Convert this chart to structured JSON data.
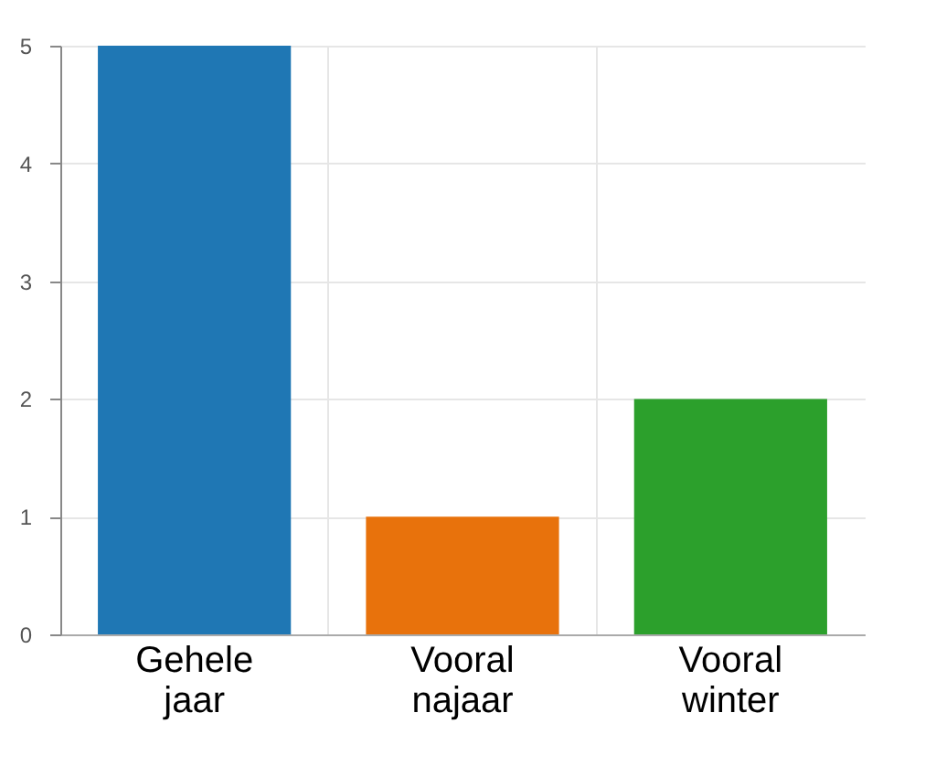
{
  "chart_data": {
    "type": "bar",
    "categories": [
      "Gehele jaar",
      "Vooral najaar",
      "Vooral winter"
    ],
    "values": [
      5,
      1,
      2
    ],
    "colors": [
      "#1f77b4",
      "#e8720c",
      "#2ca02c"
    ],
    "ylim": [
      0,
      5
    ],
    "yticks": [
      0,
      1,
      2,
      3,
      4,
      5
    ],
    "grid": true,
    "legend": false
  }
}
